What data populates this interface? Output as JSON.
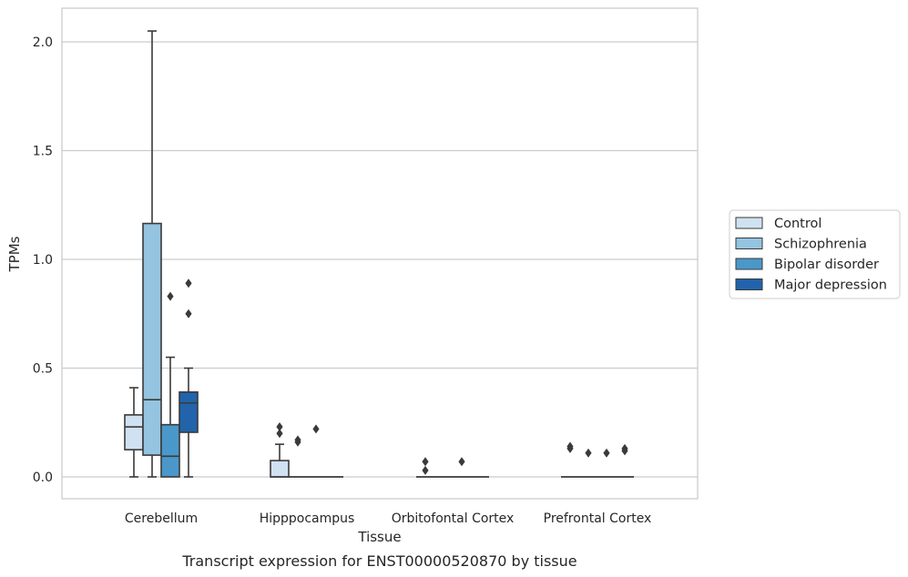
{
  "caption": "Transcript expression for ENST00000520870 by tissue",
  "chart_data": {
    "type": "box",
    "xlabel": "Tissue",
    "ylabel": "TPMs",
    "ylim": [
      -0.1,
      2.15
    ],
    "yticks": [
      0.0,
      0.5,
      1.0,
      1.5,
      2.0
    ],
    "ytick_labels": [
      "0.0",
      "0.5",
      "1.0",
      "1.5",
      "2.0"
    ],
    "grid": "horizontal",
    "legend_placement": "right",
    "categories": [
      "Cerebellum",
      "Hipppocampus",
      "Orbitofontal Cortex",
      "Prefrontal Cortex"
    ],
    "series": [
      {
        "name": "Control",
        "color": "#d0e1f2",
        "boxes": [
          {
            "q1": 0.125,
            "median": 0.23,
            "q3": 0.285,
            "whislo": 0.0,
            "whishi": 0.41,
            "fliers": []
          },
          {
            "q1": 0.0,
            "median": 0.0,
            "q3": 0.075,
            "whislo": 0.0,
            "whishi": 0.15,
            "fliers": [
              0.2,
              0.23
            ]
          },
          {
            "q1": 0.0,
            "median": 0.0,
            "q3": 0.0,
            "whislo": 0.0,
            "whishi": 0.0,
            "fliers": [
              0.03,
              0.07
            ]
          },
          {
            "q1": 0.0,
            "median": 0.0,
            "q3": 0.0,
            "whislo": 0.0,
            "whishi": 0.0,
            "fliers": [
              0.13,
              0.14
            ]
          }
        ]
      },
      {
        "name": "Schizophrenia",
        "color": "#94c4df",
        "boxes": [
          {
            "q1": 0.1,
            "median": 0.355,
            "q3": 1.165,
            "whislo": 0.0,
            "whishi": 2.05,
            "fliers": []
          },
          {
            "q1": 0.0,
            "median": 0.0,
            "q3": 0.0,
            "whislo": 0.0,
            "whishi": 0.0,
            "fliers": [
              0.16,
              0.17
            ]
          },
          {
            "q1": 0.0,
            "median": 0.0,
            "q3": 0.0,
            "whislo": 0.0,
            "whishi": 0.0,
            "fliers": []
          },
          {
            "q1": 0.0,
            "median": 0.0,
            "q3": 0.0,
            "whislo": 0.0,
            "whishi": 0.0,
            "fliers": [
              0.11
            ]
          }
        ]
      },
      {
        "name": "Bipolar disorder",
        "color": "#4a98c9",
        "boxes": [
          {
            "q1": 0.0,
            "median": 0.095,
            "q3": 0.24,
            "whislo": 0.0,
            "whishi": 0.55,
            "fliers": [
              0.83
            ]
          },
          {
            "q1": 0.0,
            "median": 0.0,
            "q3": 0.0,
            "whislo": 0.0,
            "whishi": 0.0,
            "fliers": [
              0.22
            ]
          },
          {
            "q1": 0.0,
            "median": 0.0,
            "q3": 0.0,
            "whislo": 0.0,
            "whishi": 0.0,
            "fliers": [
              0.07
            ]
          },
          {
            "q1": 0.0,
            "median": 0.0,
            "q3": 0.0,
            "whislo": 0.0,
            "whishi": 0.0,
            "fliers": [
              0.11
            ]
          }
        ]
      },
      {
        "name": "Major depression",
        "color": "#2164ab",
        "boxes": [
          {
            "q1": 0.205,
            "median": 0.34,
            "q3": 0.39,
            "whislo": 0.0,
            "whishi": 0.5,
            "fliers": [
              0.75,
              0.89
            ]
          },
          {
            "q1": 0.0,
            "median": 0.0,
            "q3": 0.0,
            "whislo": 0.0,
            "whishi": 0.0,
            "fliers": []
          },
          {
            "q1": 0.0,
            "median": 0.0,
            "q3": 0.0,
            "whislo": 0.0,
            "whishi": 0.0,
            "fliers": []
          },
          {
            "q1": 0.0,
            "median": 0.0,
            "q3": 0.0,
            "whislo": 0.0,
            "whishi": 0.0,
            "fliers": [
              0.12,
              0.13
            ]
          }
        ]
      }
    ]
  }
}
